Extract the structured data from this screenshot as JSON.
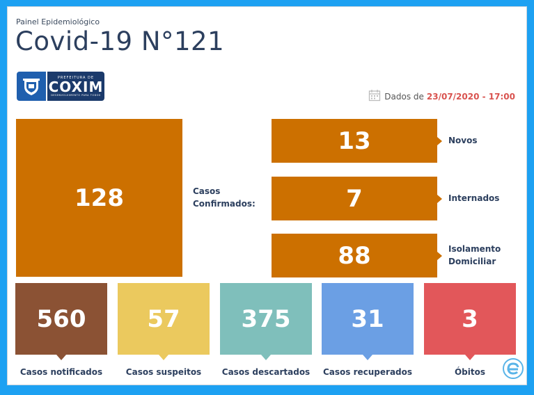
{
  "header": {
    "subtitle": "Painel Epidemiológico",
    "title": "Covid-19 N°121"
  },
  "logo": {
    "top_text": "PREFEITURA DE",
    "name": "COXIM",
    "bottom_text": "DESENVOLVIMENTO PARA TODOS"
  },
  "date": {
    "prefix": "Dados de",
    "value": "23/07/2020 - 17:00"
  },
  "confirmed": {
    "value": "128",
    "label_line1": "Casos",
    "label_line2": "Confirmados:"
  },
  "breakdown": [
    {
      "value": "13",
      "label_line1": "Novos",
      "label_line2": ""
    },
    {
      "value": "7",
      "label_line1": "Internados",
      "label_line2": ""
    },
    {
      "value": "88",
      "label_line1": "Isolamento",
      "label_line2": "Domiciliar"
    }
  ],
  "stats": [
    {
      "value": "560",
      "label": "Casos notificados",
      "color": "#8b5234"
    },
    {
      "value": "57",
      "label": "Casos suspeitos",
      "color": "#ebc95e"
    },
    {
      "value": "375",
      "label": "Casos descartados",
      "color": "#7fbfbb"
    },
    {
      "value": "31",
      "label": "Casos recuperados",
      "color": "#6b9fe4"
    },
    {
      "value": "3",
      "label": "Óbitos",
      "color": "#e2575a"
    }
  ],
  "colors": {
    "accent_orange": "#cc7000",
    "title_navy": "#2c3f5e",
    "frame_blue": "#1da1f2"
  },
  "icons": [
    "calendar-icon",
    "brand-e-icon",
    "crest-icon"
  ]
}
